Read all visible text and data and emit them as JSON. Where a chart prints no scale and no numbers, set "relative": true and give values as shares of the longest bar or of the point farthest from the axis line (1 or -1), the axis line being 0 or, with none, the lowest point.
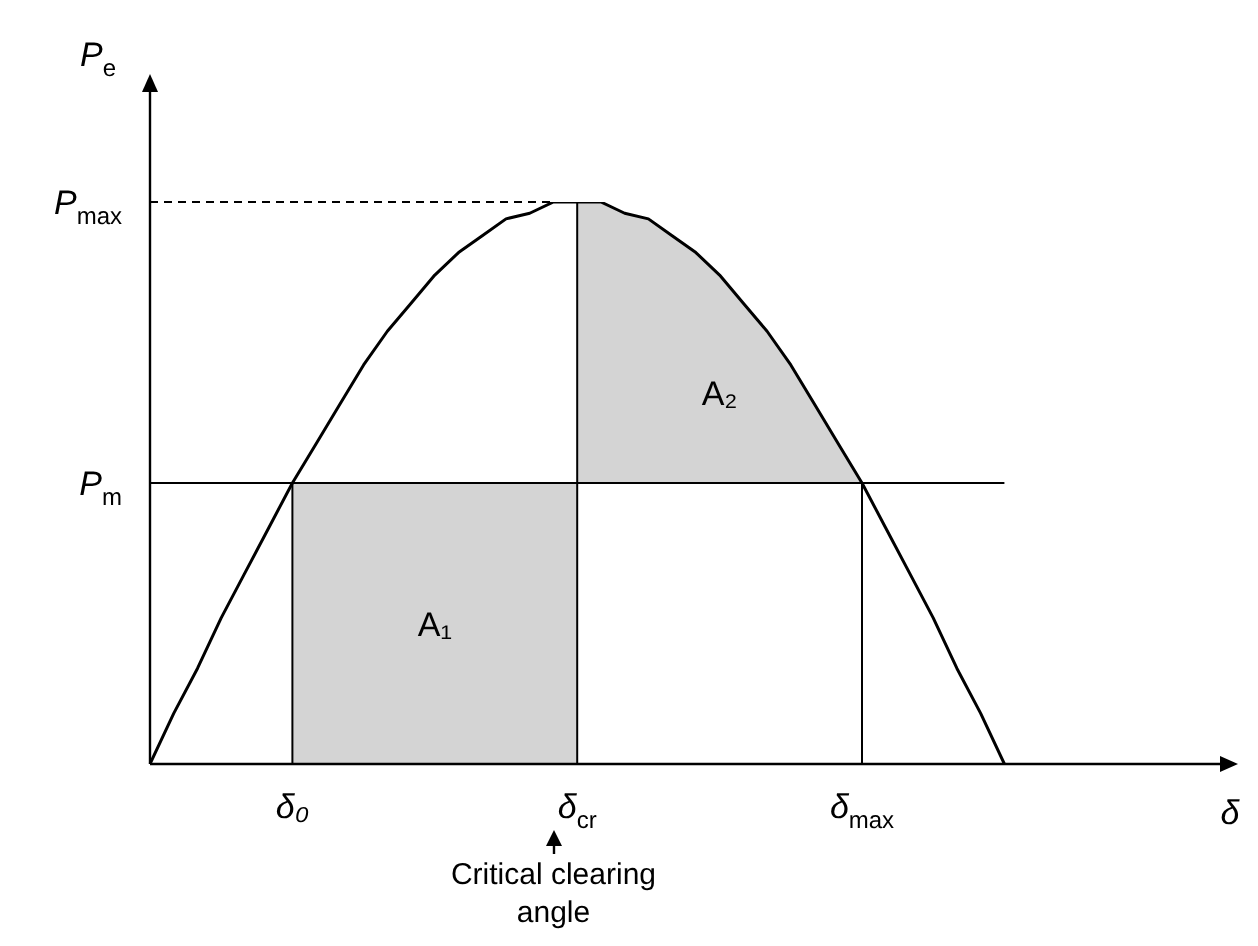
{
  "chart_data": {
    "type": "line",
    "relative": true,
    "xlabel": "δ",
    "ylabel": "P$_{e}$",
    "categories": [
      null,
      null,
      null,
      null,
      null,
      null,
      "δ₀",
      null,
      null,
      null,
      null,
      null,
      null,
      null,
      null,
      null,
      null,
      null,
      "δ$_{cr}$",
      null,
      null,
      null,
      null,
      null,
      null,
      null,
      null,
      null,
      null,
      null,
      "δ$_{max}$",
      null,
      null,
      null,
      null,
      null,
      null,
      null,
      null,
      null,
      null,
      null,
      null,
      null,
      null,
      null
    ],
    "series": [
      {
        "color": "#000000",
        "values": [
          0,
          0.09,
          0.17,
          0.26,
          0.34,
          0.42,
          0.5,
          0.57,
          0.64,
          0.71,
          0.77,
          0.82,
          0.87,
          0.91,
          0.94,
          0.97,
          0.98,
          1,
          1,
          1,
          0.98,
          0.97,
          0.94,
          0.91,
          0.87,
          0.82,
          0.77,
          0.71,
          0.64,
          0.57,
          0.5,
          0.42,
          0.34,
          0.26,
          0.17,
          0.09,
          0,
          null,
          null,
          null,
          null,
          null,
          null,
          null,
          null,
          null
        ]
      },
      {
        "type": "area",
        "name": "A₁",
        "color": "#d4d4d4",
        "values": [
          null,
          null,
          null,
          null,
          null,
          null,
          0.5,
          0.5,
          0.5,
          0.5,
          0.5,
          0.5,
          0.5,
          0.5,
          0.5,
          0.5,
          0.5,
          0.5,
          0.5,
          null,
          null,
          null,
          null,
          null,
          null,
          null,
          null,
          null,
          null,
          null,
          null,
          null,
          null,
          null,
          null,
          null,
          null,
          null,
          null,
          null,
          null,
          null,
          null,
          null,
          null,
          null
        ]
      },
      {
        "type": "area",
        "name": "A₂",
        "color": "#d4d4d4",
        "values": [
          null,
          null,
          null,
          null,
          null,
          null,
          null,
          null,
          null,
          null,
          null,
          null,
          null,
          null,
          null,
          null,
          null,
          null,
          1,
          1,
          0.98,
          0.97,
          0.94,
          0.91,
          0.87,
          0.82,
          0.77,
          0.71,
          0.64,
          0.57,
          0.5,
          null,
          null,
          null,
          null,
          null,
          null,
          null,
          null,
          null,
          null,
          null,
          null,
          null,
          null,
          null
        ]
      }
    ],
    "ref_lines": [
      {
        "axis": "y",
        "value": 1,
        "label": "P$_{max}$",
        "line_style": "dashed"
      },
      {
        "axis": "y",
        "value": 0.5,
        "label": "P$_{m}$"
      }
    ],
    "annotations": [
      "Critical clearing angle"
    ]
  }
}
